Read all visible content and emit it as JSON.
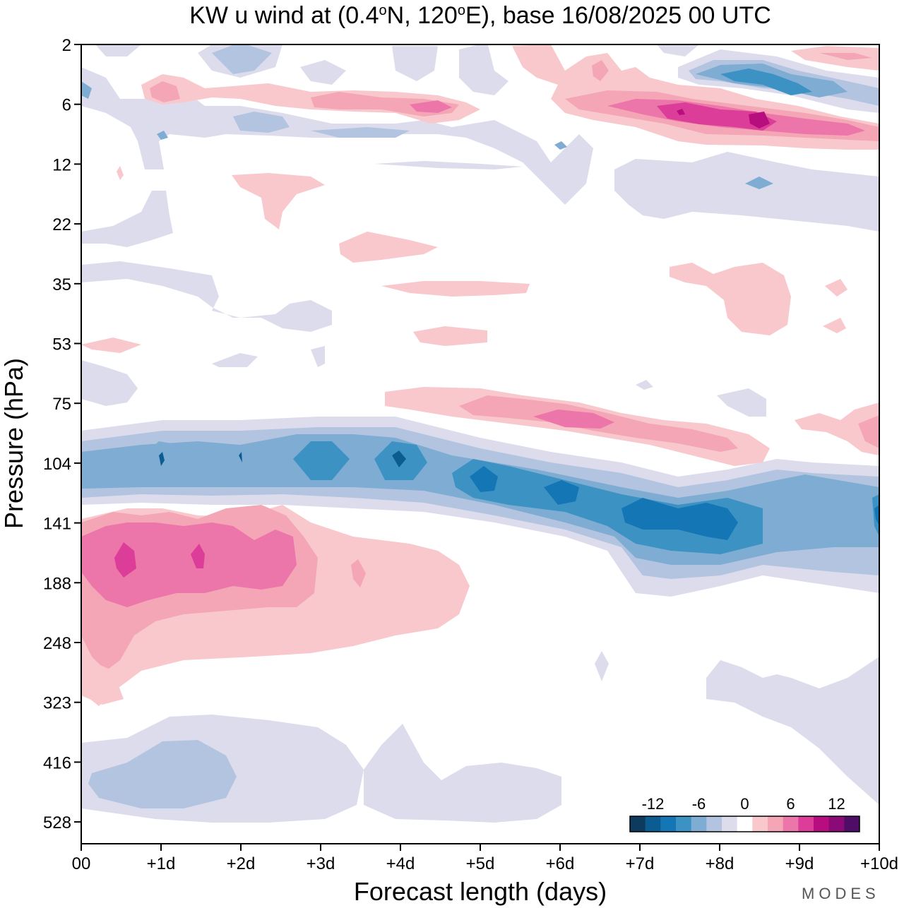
{
  "chart_data": {
    "type": "heatmap",
    "title": {
      "prefix": "KW u wind at (0.4",
      "lat_unit": "N, 120",
      "suffix": "E),  base 16/08/2025  00 UTC",
      "degree": "o"
    },
    "xlabel": "Forecast length (days)",
    "ylabel": "Pressure (hPa)",
    "x_ticks": [
      "00",
      "+1d",
      "+2d",
      "+3d",
      "+4d",
      "+5d",
      "+6d",
      "+7d",
      "+8d",
      "+9d",
      "+10d"
    ],
    "y_ticks": [
      "2",
      "6",
      "12",
      "22",
      "35",
      "53",
      "75",
      "104",
      "141",
      "188",
      "248",
      "323",
      "416",
      "528"
    ],
    "xlim": [
      0,
      10
    ],
    "ylim_index": [
      0,
      13
    ],
    "colorbar": {
      "levels": [
        -14,
        -12,
        -10,
        -8,
        -6,
        -4,
        -2,
        2,
        4,
        6,
        8,
        10,
        12,
        14
      ],
      "tick_labels": [
        "-12",
        "-6",
        "0",
        "6",
        "12"
      ],
      "colors": [
        "#0d3b5e",
        "#0b5d91",
        "#1476b4",
        "#3d92c4",
        "#7facd2",
        "#b3c4e0",
        "#dcdcec",
        "#ffffff",
        "#f8c8cc",
        "#f4a6b6",
        "#ec76a9",
        "#dc3d98",
        "#b80d7e",
        "#8c0a78",
        "#4f0d68"
      ]
    },
    "contours": [
      {
        "level": -2,
        "day": 4.8,
        "p_index": 7.4,
        "dx": 5.2,
        "dy": 0.45,
        "note": "negative band 104 hPa"
      },
      {
        "level": -6,
        "day": 2.5,
        "p_index": 7.0,
        "dx": 2.4,
        "dy": 0.3
      },
      {
        "level": -10,
        "day": 7.8,
        "p_index": 7.9,
        "dx": 1.8,
        "dy": 0.3
      },
      {
        "level": 6,
        "day": 1.4,
        "p_index": 8.6,
        "dx": 1.3,
        "dy": 0.5
      },
      {
        "level": 4,
        "day": 6.5,
        "p_index": 6.3,
        "dx": 2.0,
        "dy": 0.25
      },
      {
        "level": 6,
        "day": 8.0,
        "p_index": 1.2,
        "dx": 1.6,
        "dy": 0.25
      },
      {
        "level": -4,
        "day": 8.6,
        "p_index": 0.5,
        "dx": 1.0,
        "dy": 0.2
      },
      {
        "level": -2,
        "day": 1.8,
        "p_index": 12.2,
        "dx": 2.0,
        "dy": 0.6
      }
    ]
  },
  "watermark": "MODES"
}
